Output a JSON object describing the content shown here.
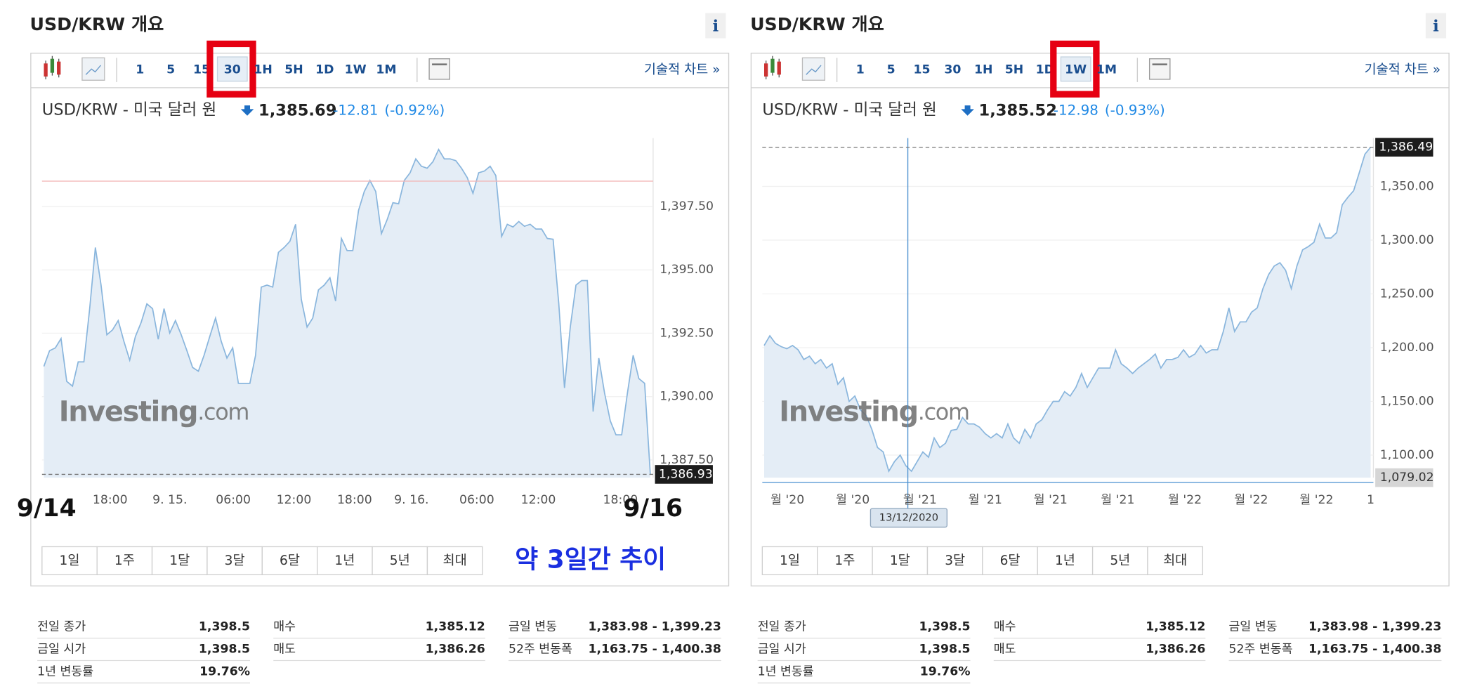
{
  "annotations": {
    "start_date": "9/14",
    "end_date": "9/16",
    "note": "약 3일간 추이"
  },
  "panels": [
    {
      "title": "USD/KRW 개요",
      "info": "i",
      "intervals": [
        "1",
        "5",
        "15",
        "30",
        "1H",
        "5H",
        "1D",
        "1W",
        "1M"
      ],
      "selected_interval": 3,
      "tech_chart": "기술적 차트 »",
      "quote": {
        "name": "USD/KRW - 미국 달러 원",
        "price": "1,385.69",
        "change": "-12.81",
        "change_pct": "(-0.92%)"
      },
      "ranges": [
        "1일",
        "1주",
        "1달",
        "3달",
        "6달",
        "1년",
        "5년",
        "최대"
      ],
      "stats": [
        [
          {
            "label": "전일 종가",
            "value": "1,398.5"
          },
          {
            "label": "금일 시가",
            "value": "1,398.5"
          },
          {
            "label": "1년 변동률",
            "value": "19.76%"
          }
        ],
        [
          {
            "label": "매수",
            "value": "1,385.12"
          },
          {
            "label": "매도",
            "value": "1,386.26"
          }
        ],
        [
          {
            "label": "금일 변동",
            "value": "1,383.98 - 1,399.23"
          },
          {
            "label": "52주 변동폭",
            "value": "1,163.75 - 1,400.38"
          }
        ]
      ]
    },
    {
      "title": "USD/KRW 개요",
      "info": "i",
      "intervals": [
        "1",
        "5",
        "15",
        "30",
        "1H",
        "5H",
        "1D",
        "1W",
        "1M"
      ],
      "selected_interval": 7,
      "tech_chart": "기술적 차트 »",
      "quote": {
        "name": "USD/KRW - 미국 달러 원",
        "price": "1,385.52",
        "change": "-12.98",
        "change_pct": "(-0.93%)"
      },
      "ranges": [
        "1일",
        "1주",
        "1달",
        "3달",
        "6달",
        "1년",
        "5년",
        "최대"
      ],
      "stats": [
        [
          {
            "label": "전일 종가",
            "value": "1,398.5"
          },
          {
            "label": "금일 시가",
            "value": "1,398.5"
          },
          {
            "label": "1년 변동률",
            "value": "19.76%"
          }
        ],
        [
          {
            "label": "매수",
            "value": "1,385.12"
          },
          {
            "label": "매도",
            "value": "1,386.26"
          }
        ],
        [
          {
            "label": "금일 변동",
            "value": "1,383.98 - 1,399.23"
          },
          {
            "label": "52주 변동폭",
            "value": "1,163.75 - 1,400.38"
          }
        ]
      ]
    }
  ],
  "chart_data": [
    {
      "type": "area",
      "color": "#8ab6dd",
      "fill": "#e4edf6",
      "grid": true,
      "watermark": [
        "Investing",
        ".com"
      ],
      "x_labels": [
        "18:00",
        "9. 15.",
        "06:00",
        "12:00",
        "18:00",
        "9. 16.",
        "06:00",
        "12:00",
        "18:00"
      ],
      "values": [
        1391.19,
        1391.81,
        1391.92,
        1392.29,
        1390.6,
        1390.41,
        1391.37,
        1391.37,
        1393.47,
        1395.88,
        1394.4,
        1392.44,
        1392.63,
        1393.0,
        1392.18,
        1391.44,
        1392.37,
        1392.92,
        1393.66,
        1393.47,
        1392.26,
        1393.47,
        1392.51,
        1393.0,
        1392.44,
        1391.81,
        1391.15,
        1391.0,
        1391.63,
        1392.37,
        1393.1,
        1392.18,
        1391.52,
        1391.92,
        1390.52,
        1390.52,
        1390.52,
        1391.63,
        1394.32,
        1394.4,
        1394.32,
        1395.69,
        1395.88,
        1396.13,
        1396.8,
        1393.84,
        1392.74,
        1393.1,
        1394.21,
        1394.4,
        1394.69,
        1393.77,
        1396.24,
        1395.76,
        1395.76,
        1397.35,
        1398.09,
        1398.53,
        1398.09,
        1396.43,
        1396.98,
        1397.65,
        1397.61,
        1398.53,
        1398.83,
        1399.38,
        1399.09,
        1399.01,
        1399.27,
        1399.75,
        1399.38,
        1399.38,
        1399.31,
        1399.01,
        1398.64,
        1398.02,
        1398.83,
        1398.9,
        1399.09,
        1398.72,
        1396.32,
        1396.8,
        1396.69,
        1396.91,
        1396.72,
        1396.8,
        1396.61,
        1396.61,
        1396.24,
        1396.21,
        1393.66,
        1390.34,
        1392.74,
        1394.4,
        1394.58,
        1394.58,
        1389.41,
        1391.52,
        1390.15,
        1389.04,
        1388.49,
        1388.49,
        1390.15,
        1391.63,
        1390.71,
        1390.52,
        1386.93
      ],
      "ylim": [
        1386.8,
        1400.2
      ],
      "yticks": [
        {
          "value": 1387.5,
          "label": "1,387.50"
        },
        {
          "value": 1390,
          "label": "1,390.00"
        },
        {
          "value": 1392.5,
          "label": "1,392.50"
        },
        {
          "value": 1395,
          "label": "1,395.00"
        },
        {
          "value": 1397.5,
          "label": "1,397.50"
        }
      ],
      "ref_line": 1398.5,
      "last_label": {
        "value": 1386.93,
        "label": "1,386.93"
      }
    },
    {
      "type": "area",
      "color": "#8ab6dd",
      "fill": "#e4edf6",
      "grid": true,
      "watermark": [
        "Investing",
        ".com"
      ],
      "x_labels": [
        "월 '20",
        "월 '20",
        "월 '21",
        "월 '21",
        "월 '21",
        "월 '21",
        "월 '22",
        "월 '22",
        "월 '22",
        "1"
      ],
      "values": [
        1202,
        1211,
        1204,
        1201,
        1199,
        1202,
        1198,
        1189,
        1192,
        1185,
        1189,
        1181,
        1185,
        1166,
        1172,
        1150,
        1155,
        1142,
        1137,
        1124,
        1107,
        1103,
        1085,
        1094,
        1100,
        1090,
        1085,
        1094,
        1103,
        1098,
        1116,
        1107,
        1111,
        1123,
        1124,
        1135,
        1129,
        1129,
        1126,
        1120,
        1116,
        1120,
        1116,
        1129,
        1116,
        1111,
        1124,
        1116,
        1129,
        1133,
        1142,
        1150,
        1150,
        1159,
        1155,
        1163,
        1176,
        1163,
        1172,
        1181,
        1181,
        1181,
        1198,
        1185,
        1181,
        1176,
        1181,
        1185,
        1189,
        1194,
        1181,
        1189,
        1189,
        1191,
        1198,
        1191,
        1194,
        1202,
        1195,
        1198,
        1198,
        1215,
        1237,
        1215,
        1224,
        1224,
        1233,
        1237,
        1255,
        1268,
        1276,
        1279,
        1272,
        1255,
        1276,
        1291,
        1294,
        1298,
        1315,
        1302,
        1302,
        1307,
        1333,
        1340,
        1346,
        1363,
        1380,
        1386.49
      ],
      "ylim": [
        1079,
        1395
      ],
      "yticks": [
        {
          "value": 1100,
          "label": "1,100.00"
        },
        {
          "value": 1150,
          "label": "1,150.00"
        },
        {
          "value": 1200,
          "label": "1,200.00"
        },
        {
          "value": 1250,
          "label": "1,250.00"
        },
        {
          "value": 1300,
          "label": "1,300.00"
        },
        {
          "value": 1350,
          "label": "1,350.00"
        }
      ],
      "last_label": {
        "value": 1386.49,
        "label": "1,386.49"
      },
      "low_label": {
        "value": 1079.02,
        "label": "1,079.02"
      },
      "crosshair_label": "13/12/2020"
    }
  ]
}
